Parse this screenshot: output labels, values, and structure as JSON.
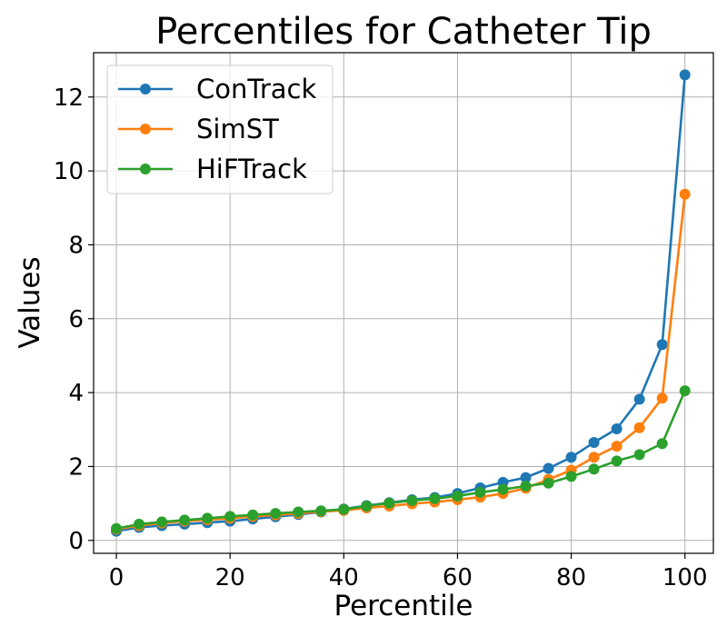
{
  "chart_data": {
    "type": "line",
    "title": "Percentiles for Catheter Tip",
    "xlabel": "Percentile",
    "ylabel": "Values",
    "xlim": [
      -4,
      105
    ],
    "ylim": [
      -0.35,
      13.2
    ],
    "x_ticks": [
      0,
      20,
      40,
      60,
      80,
      100
    ],
    "y_ticks": [
      0,
      2,
      4,
      6,
      8,
      10,
      12
    ],
    "grid": true,
    "legend_position": "top-left",
    "x": [
      0,
      4,
      8,
      12,
      16,
      20,
      24,
      28,
      32,
      36,
      40,
      44,
      48,
      52,
      56,
      60,
      64,
      68,
      72,
      76,
      80,
      84,
      88,
      92,
      96,
      100
    ],
    "series": [
      {
        "name": "ConTrack",
        "color": "#1f77b4",
        "values": [
          0.25,
          0.35,
          0.4,
          0.44,
          0.48,
          0.52,
          0.58,
          0.64,
          0.7,
          0.77,
          0.85,
          0.94,
          1.02,
          1.1,
          1.16,
          1.27,
          1.42,
          1.57,
          1.7,
          1.95,
          2.25,
          2.65,
          3.02,
          3.82,
          5.3,
          12.6
        ]
      },
      {
        "name": "SimST",
        "color": "#ff7f0e",
        "values": [
          0.3,
          0.4,
          0.47,
          0.52,
          0.56,
          0.6,
          0.65,
          0.69,
          0.73,
          0.78,
          0.81,
          0.88,
          0.93,
          0.99,
          1.04,
          1.1,
          1.17,
          1.27,
          1.41,
          1.65,
          1.9,
          2.25,
          2.55,
          3.05,
          3.85,
          9.37
        ]
      },
      {
        "name": "HiFTrack",
        "color": "#2ca02c",
        "values": [
          0.32,
          0.44,
          0.5,
          0.55,
          0.6,
          0.65,
          0.69,
          0.73,
          0.77,
          0.8,
          0.84,
          0.93,
          1.01,
          1.08,
          1.13,
          1.2,
          1.3,
          1.38,
          1.47,
          1.55,
          1.73,
          1.93,
          2.15,
          2.32,
          2.62,
          4.05
        ]
      }
    ]
  }
}
